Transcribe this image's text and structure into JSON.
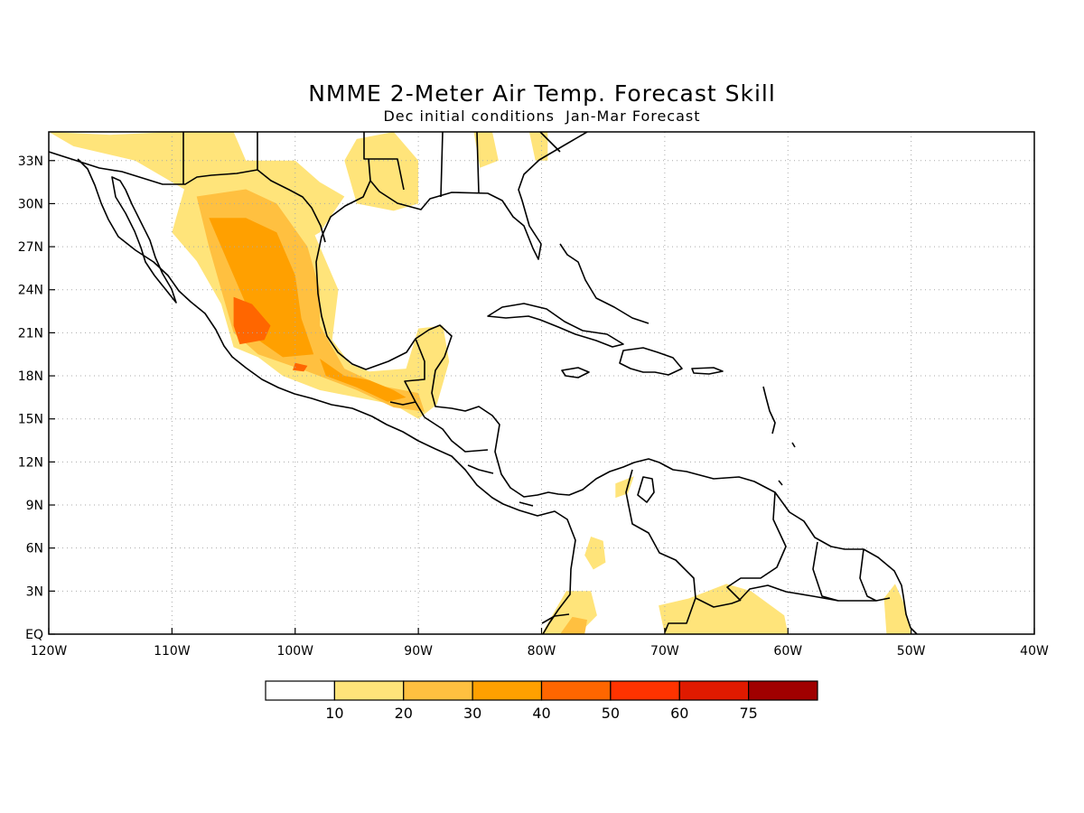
{
  "map": {
    "title": "NMME 2-Meter Air Temp. Forecast Skill",
    "subtitle": "Dec initial conditions  Jan-Mar Forecast",
    "lon_range": [
      -120,
      -40
    ],
    "lat_range": [
      0,
      35
    ],
    "lon_ticks": [
      {
        "value": -120,
        "label": "120W"
      },
      {
        "value": -110,
        "label": "110W"
      },
      {
        "value": -100,
        "label": "100W"
      },
      {
        "value": -90,
        "label": "90W"
      },
      {
        "value": -80,
        "label": "80W"
      },
      {
        "value": -70,
        "label": "70W"
      },
      {
        "value": -60,
        "label": "60W"
      },
      {
        "value": -50,
        "label": "50W"
      },
      {
        "value": -40,
        "label": "40W"
      }
    ],
    "lat_ticks": [
      {
        "value": 0,
        "label": "EQ"
      },
      {
        "value": 3,
        "label": "3N"
      },
      {
        "value": 6,
        "label": "6N"
      },
      {
        "value": 9,
        "label": "9N"
      },
      {
        "value": 12,
        "label": "12N"
      },
      {
        "value": 15,
        "label": "15N"
      },
      {
        "value": 18,
        "label": "18N"
      },
      {
        "value": 21,
        "label": "21N"
      },
      {
        "value": 24,
        "label": "24N"
      },
      {
        "value": 27,
        "label": "27N"
      },
      {
        "value": 30,
        "label": "30N"
      },
      {
        "value": 33,
        "label": "33N"
      }
    ],
    "grid": true,
    "colorbar": {
      "labels": [
        "10",
        "20",
        "30",
        "40",
        "50",
        "60",
        "75"
      ],
      "colors": [
        "#ffffff",
        "#ffe47a",
        "#ffc040",
        "#ffa000",
        "#ff6600",
        "#ff3300",
        "#e01a00",
        "#a00000"
      ]
    },
    "skill_regions": [
      {
        "level": 1,
        "name": "us-southwest",
        "points": [
          [
            -120,
            35
          ],
          [
            -115,
            34.8
          ],
          [
            -110,
            35
          ],
          [
            -105,
            35
          ],
          [
            -104,
            33
          ],
          [
            -100,
            33
          ],
          [
            -98,
            31.5
          ],
          [
            -96,
            30.5
          ],
          [
            -98,
            28
          ],
          [
            -100,
            27
          ],
          [
            -105,
            28
          ],
          [
            -109,
            31
          ],
          [
            -113,
            33
          ],
          [
            -118,
            34
          ]
        ]
      },
      {
        "level": 1,
        "name": "us-gulf-coast",
        "points": [
          [
            -96,
            33
          ],
          [
            -95,
            34.5
          ],
          [
            -92,
            35
          ],
          [
            -90,
            33
          ],
          [
            -90,
            30
          ],
          [
            -92,
            29.5
          ],
          [
            -95,
            30
          ]
        ]
      },
      {
        "level": 1,
        "name": "us-southeast",
        "points": [
          [
            -85.5,
            35
          ],
          [
            -84,
            35
          ],
          [
            -83.5,
            33
          ],
          [
            -85,
            32.5
          ]
        ]
      },
      {
        "level": 1,
        "name": "us-southeast-2",
        "points": [
          [
            -81,
            35
          ],
          [
            -79.5,
            35
          ],
          [
            -79.5,
            33
          ],
          [
            -80.5,
            33
          ]
        ]
      },
      {
        "level": 1,
        "name": "mexico",
        "points": [
          [
            -109,
            31
          ],
          [
            -105,
            32
          ],
          [
            -101,
            31.5
          ],
          [
            -98.5,
            28
          ],
          [
            -96.5,
            24
          ],
          [
            -97,
            20.5
          ],
          [
            -95.5,
            18.8
          ],
          [
            -94,
            18.3
          ],
          [
            -91,
            18.5
          ],
          [
            -90,
            21.3
          ],
          [
            -88,
            21.5
          ],
          [
            -87.5,
            19
          ],
          [
            -88.5,
            16
          ],
          [
            -90,
            15
          ],
          [
            -92,
            16
          ],
          [
            -95,
            16.5
          ],
          [
            -98,
            17
          ],
          [
            -101,
            18
          ],
          [
            -103,
            19.3
          ],
          [
            -105,
            20
          ],
          [
            -106,
            23
          ],
          [
            -108,
            26
          ],
          [
            -110,
            28
          ]
        ]
      },
      {
        "level": 2,
        "name": "mexico-core",
        "points": [
          [
            -108,
            30.5
          ],
          [
            -104,
            31
          ],
          [
            -101.5,
            30
          ],
          [
            -99,
            27
          ],
          [
            -98,
            24
          ],
          [
            -98,
            21.5
          ],
          [
            -96,
            18.5
          ],
          [
            -93,
            17.3
          ],
          [
            -90,
            16.8
          ],
          [
            -89.5,
            15.5
          ],
          [
            -92,
            15.8
          ],
          [
            -95,
            17
          ],
          [
            -99,
            18.3
          ],
          [
            -103,
            19.5
          ],
          [
            -105,
            21
          ],
          [
            -106,
            24
          ],
          [
            -107,
            27
          ]
        ]
      },
      {
        "level": 3,
        "name": "mexico-inner",
        "points": [
          [
            -107,
            29
          ],
          [
            -104,
            29
          ],
          [
            -101.5,
            28
          ],
          [
            -100,
            25
          ],
          [
            -99.5,
            22
          ],
          [
            -98.5,
            19.5
          ],
          [
            -101,
            19.3
          ],
          [
            -103,
            20.5
          ],
          [
            -104,
            23
          ],
          [
            -105.5,
            26
          ]
        ]
      },
      {
        "level": 3,
        "name": "mexico-south",
        "points": [
          [
            -98,
            19.2
          ],
          [
            -96,
            18
          ],
          [
            -94,
            17.7
          ],
          [
            -92,
            17
          ],
          [
            -91,
            16.5
          ],
          [
            -92.5,
            16.2
          ],
          [
            -95,
            17.2
          ],
          [
            -97.5,
            18
          ]
        ]
      },
      {
        "level": 4,
        "name": "mexico-peak",
        "points": [
          [
            -105,
            23.5
          ],
          [
            -103.5,
            23
          ],
          [
            -102,
            21.5
          ],
          [
            -102.5,
            20.5
          ],
          [
            -104.5,
            20.2
          ],
          [
            -105,
            21.5
          ]
        ]
      },
      {
        "level": 4,
        "name": "mexico-peak-2",
        "points": [
          [
            -100,
            18.9
          ],
          [
            -99,
            18.7
          ],
          [
            -99.3,
            18.3
          ],
          [
            -100.2,
            18.4
          ]
        ]
      },
      {
        "level": 1,
        "name": "colombia-west",
        "points": [
          [
            -76,
            6.8
          ],
          [
            -75,
            6.5
          ],
          [
            -74.8,
            5
          ],
          [
            -75.8,
            4.5
          ],
          [
            -76.5,
            5.5
          ]
        ]
      },
      {
        "level": 1,
        "name": "colombia-north",
        "points": [
          [
            -74,
            10.5
          ],
          [
            -72.5,
            11
          ],
          [
            -73,
            9.8
          ],
          [
            -74,
            9.5
          ]
        ]
      },
      {
        "level": 1,
        "name": "amazon-west",
        "points": [
          [
            -80,
            0
          ],
          [
            -77,
            0
          ],
          [
            -75.5,
            1.3
          ],
          [
            -76,
            3
          ],
          [
            -78,
            3
          ],
          [
            -79,
            1.5
          ]
        ]
      },
      {
        "level": 2,
        "name": "amazon-west-core",
        "points": [
          [
            -78.5,
            0
          ],
          [
            -76.5,
            0
          ],
          [
            -76.3,
            1
          ],
          [
            -77.5,
            1.2
          ]
        ]
      },
      {
        "level": 1,
        "name": "amazon-central",
        "points": [
          [
            -70,
            0
          ],
          [
            -60,
            0
          ],
          [
            -60.3,
            1.3
          ],
          [
            -63,
            3
          ],
          [
            -65,
            3.5
          ],
          [
            -68,
            2.5
          ],
          [
            -70.5,
            2
          ]
        ]
      },
      {
        "level": 1,
        "name": "amazon-east",
        "points": [
          [
            -52,
            0
          ],
          [
            -50,
            0
          ],
          [
            -50.5,
            2
          ],
          [
            -51.3,
            3.5
          ],
          [
            -52.2,
            2.5
          ]
        ]
      }
    ]
  }
}
